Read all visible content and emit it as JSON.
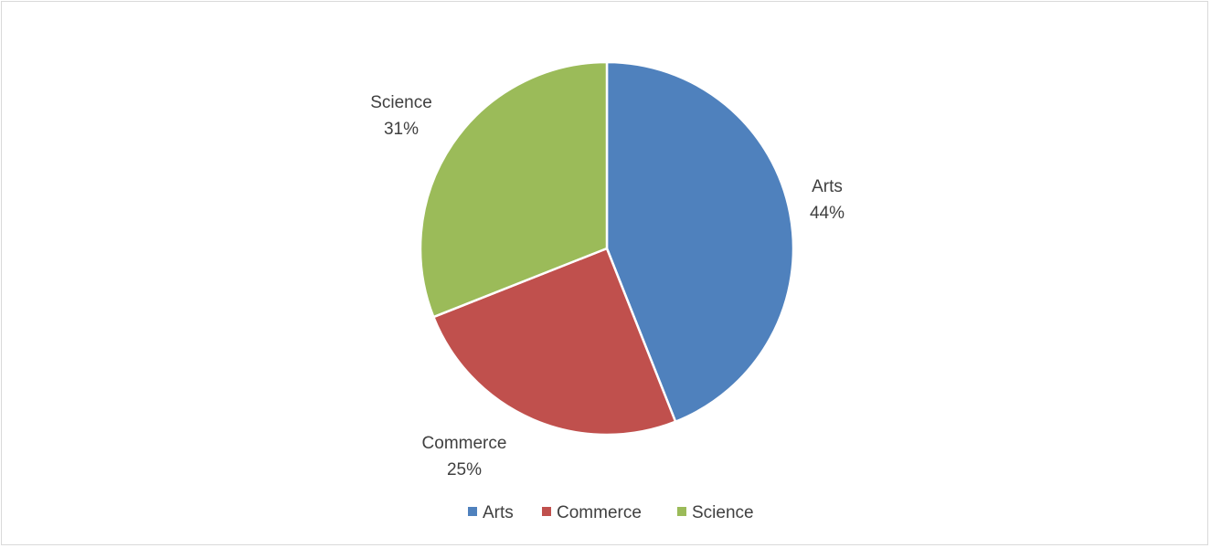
{
  "chart_data": {
    "type": "pie",
    "title": "",
    "categories": [
      "Arts",
      "Commerce",
      "Science"
    ],
    "values": [
      44,
      25,
      31
    ],
    "unit": "%",
    "colors": [
      "#4f81bd",
      "#c0504d",
      "#9bbb59"
    ],
    "data_labels": [
      {
        "name": "Arts",
        "value": "44%"
      },
      {
        "name": "Commerce",
        "value": "25%"
      },
      {
        "name": "Science",
        "value": "31%"
      }
    ],
    "legend": {
      "position": "bottom",
      "entries": [
        "Arts",
        "Commerce",
        "Science"
      ]
    }
  }
}
